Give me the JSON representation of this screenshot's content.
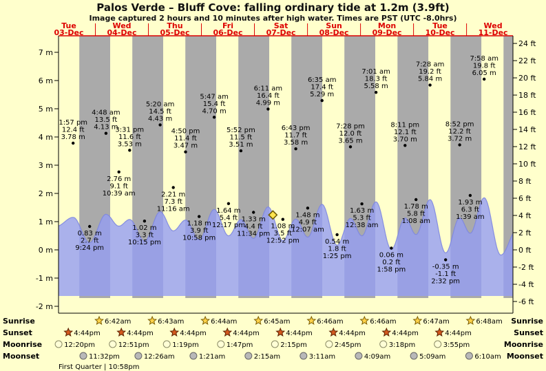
{
  "title": "Palos Verde – Bluff Cove: falling ordinary tide at 1.2m (3.9ft)",
  "subtitle": "Image captured 2 hours and 10 minutes after high water. Times are PST (UTC -8.0hrs)",
  "days": [
    {
      "name": "Tue",
      "date": "03-Dec"
    },
    {
      "name": "Wed",
      "date": "04-Dec"
    },
    {
      "name": "Thu",
      "date": "05-Dec"
    },
    {
      "name": "Fri",
      "date": "06-Dec"
    },
    {
      "name": "Sat",
      "date": "07-Dec"
    },
    {
      "name": "Sun",
      "date": "08-Dec"
    },
    {
      "name": "Mon",
      "date": "09-Dec"
    },
    {
      "name": "Tue",
      "date": "10-Dec"
    },
    {
      "name": "Wed",
      "date": "11-Dec"
    }
  ],
  "axes": {
    "left_unit": "m",
    "left_ticks": [
      7,
      6,
      5,
      4,
      3,
      2,
      1,
      0,
      -1,
      -2
    ],
    "right_unit": "ft",
    "right_ticks": [
      24,
      22,
      20,
      18,
      16,
      14,
      12,
      10,
      8,
      6,
      4,
      2,
      0,
      -2,
      -4,
      -6
    ]
  },
  "chart_data": {
    "type": "area",
    "x_range": {
      "start": "Tue 03-Dec (morning)",
      "end": "Wed 11-Dec (evening)"
    },
    "y_axis": {
      "left": {
        "unit": "m",
        "min": -2,
        "max": 7
      },
      "right": {
        "unit": "ft",
        "min": -6,
        "max": 24
      }
    },
    "events": [
      {
        "day_index": 0,
        "type": "high",
        "time": "1:57 pm",
        "ft": "12.4 ft",
        "m": "3.78 m"
      },
      {
        "day_index": 0,
        "type": "low",
        "time": "9:24 pm",
        "ft": "2.7 ft",
        "m": "0.83 m"
      },
      {
        "day_index": 1,
        "type": "high",
        "time": "4:48 am",
        "ft": "13.5 ft",
        "m": "4.13 m"
      },
      {
        "day_index": 1,
        "type": "low",
        "time": "10:39 am",
        "ft": "9.1 ft",
        "m": "2.76 m"
      },
      {
        "day_index": 1,
        "type": "high",
        "time": "3:31 pm",
        "ft": "11.6 ft",
        "m": "3.53 m"
      },
      {
        "day_index": 1,
        "type": "low",
        "time": "10:15 pm",
        "ft": "3.3 ft",
        "m": "1.02 m"
      },
      {
        "day_index": 2,
        "type": "high",
        "time": "5:20 am",
        "ft": "14.5 ft",
        "m": "4.43 m"
      },
      {
        "day_index": 2,
        "type": "low",
        "time": "11:16 am",
        "ft": "7.3 ft",
        "m": "2.21 m"
      },
      {
        "day_index": 2,
        "type": "high",
        "time": "4:50 pm",
        "ft": "11.4 ft",
        "m": "3.47 m"
      },
      {
        "day_index": 2,
        "type": "low",
        "time": "10:58 pm",
        "ft": "3.9 ft",
        "m": "1.18 m"
      },
      {
        "day_index": 3,
        "type": "high",
        "time": "5:47 am",
        "ft": "15.4 ft",
        "m": "4.70 m"
      },
      {
        "day_index": 3,
        "type": "low",
        "time": "12:17 pm",
        "ft": "5.4 ft",
        "m": "1.64 m"
      },
      {
        "day_index": 3,
        "type": "high",
        "time": "5:52 pm",
        "ft": "11.5 ft",
        "m": "3.51 m"
      },
      {
        "day_index": 3,
        "type": "low",
        "time": "11:34 pm",
        "ft": "4.4 ft",
        "m": "1.33 m"
      },
      {
        "day_index": 4,
        "type": "high",
        "time": "6:11 am",
        "ft": "16.4 ft",
        "m": "4.99 m"
      },
      {
        "day_index": 4,
        "type": "low",
        "time": "12:52 pm",
        "ft": "3.5 ft",
        "m": "1.08 m"
      },
      {
        "day_index": 4,
        "type": "high",
        "time": "6:43 pm",
        "ft": "11.7 ft",
        "m": "3.58 m"
      },
      {
        "day_index": 5,
        "type": "low",
        "time": "12:07 am",
        "ft": "4.9 ft",
        "m": "1.48 m"
      },
      {
        "day_index": 5,
        "type": "high",
        "time": "6:35 am",
        "ft": "17.4 ft",
        "m": "5.29 m"
      },
      {
        "day_index": 5,
        "type": "low",
        "time": "1:25 pm",
        "ft": "1.8 ft",
        "m": "0.54 m"
      },
      {
        "day_index": 5,
        "type": "high",
        "time": "7:28 pm",
        "ft": "12.0 ft",
        "m": "3.65 m"
      },
      {
        "day_index": 6,
        "type": "low",
        "time": "12:38 am",
        "ft": "5.3 ft",
        "m": "1.63 m"
      },
      {
        "day_index": 6,
        "type": "high",
        "time": "7:01 am",
        "ft": "18.3 ft",
        "m": "5.58 m"
      },
      {
        "day_index": 6,
        "type": "low",
        "time": "1:58 pm",
        "ft": "0.2 ft",
        "m": "0.06 m"
      },
      {
        "day_index": 6,
        "type": "high",
        "time": "8:11 pm",
        "ft": "12.1 ft",
        "m": "3.70 m"
      },
      {
        "day_index": 7,
        "type": "low",
        "time": "1:08 am",
        "ft": "5.8 ft",
        "m": "1.78 m"
      },
      {
        "day_index": 7,
        "type": "high",
        "time": "7:28 am",
        "ft": "19.2 ft",
        "m": "5.84 m"
      },
      {
        "day_index": 7,
        "type": "low",
        "time": "2:32 pm",
        "ft": "-1.1 ft",
        "m": "-0.35 m"
      },
      {
        "day_index": 7,
        "type": "high",
        "time": "8:52 pm",
        "ft": "12.2 ft",
        "m": "3.72 m"
      },
      {
        "day_index": 8,
        "type": "low",
        "time": "1:39 am",
        "ft": "6.3 ft",
        "m": "1.93 m"
      },
      {
        "day_index": 8,
        "type": "high",
        "time": "7:58 am",
        "ft": "19.8 ft",
        "m": "6.05 m"
      }
    ],
    "current_marker": {
      "day_index": 4,
      "time": "8:21 am",
      "height": "1.2m (3.9ft)",
      "state": "falling"
    }
  },
  "astro": {
    "rows": [
      {
        "label": "Sunrise",
        "icon": "sunrise-star-icon",
        "entries": [
          {
            "day_index": 1,
            "time": "6:42am"
          },
          {
            "day_index": 2,
            "time": "6:43am"
          },
          {
            "day_index": 3,
            "time": "6:44am"
          },
          {
            "day_index": 4,
            "time": "6:45am"
          },
          {
            "day_index": 5,
            "time": "6:46am"
          },
          {
            "day_index": 6,
            "time": "6:46am"
          },
          {
            "day_index": 7,
            "time": "6:47am"
          },
          {
            "day_index": 8,
            "time": "6:48am"
          }
        ]
      },
      {
        "label": "Sunset",
        "icon": "sunset-star-icon",
        "entries": [
          {
            "day_index": 0,
            "time": "4:44pm"
          },
          {
            "day_index": 1,
            "time": "4:44pm"
          },
          {
            "day_index": 2,
            "time": "4:44pm"
          },
          {
            "day_index": 3,
            "time": "4:44pm"
          },
          {
            "day_index": 4,
            "time": "4:44pm"
          },
          {
            "day_index": 5,
            "time": "4:44pm"
          },
          {
            "day_index": 6,
            "time": "4:44pm"
          },
          {
            "day_index": 7,
            "time": "4:44pm"
          }
        ]
      },
      {
        "label": "Moonrise",
        "icon": "moonrise-circle-icon",
        "entries": [
          {
            "day_index": 0,
            "time": "12:20pm"
          },
          {
            "day_index": 1,
            "time": "12:51pm"
          },
          {
            "day_index": 2,
            "time": "1:19pm"
          },
          {
            "day_index": 3,
            "time": "1:47pm"
          },
          {
            "day_index": 4,
            "time": "2:15pm"
          },
          {
            "day_index": 5,
            "time": "2:45pm"
          },
          {
            "day_index": 6,
            "time": "3:18pm"
          },
          {
            "day_index": 7,
            "time": "3:55pm"
          }
        ]
      },
      {
        "label": "Moonset",
        "icon": "moonset-circle-icon",
        "entries": [
          {
            "day_index": 0,
            "time": "11:32pm"
          },
          {
            "day_index": 2,
            "time": "12:26am"
          },
          {
            "day_index": 3,
            "time": "1:21am"
          },
          {
            "day_index": 4,
            "time": "2:15am"
          },
          {
            "day_index": 5,
            "time": "3:11am"
          },
          {
            "day_index": 6,
            "time": "4:09am"
          },
          {
            "day_index": 7,
            "time": "5:09am"
          },
          {
            "day_index": 8,
            "time": "6:10am"
          }
        ]
      }
    ]
  },
  "footer": {
    "moon_phase": "First Quarter | 10:58pm"
  },
  "colors": {
    "background": "#ffffcc",
    "red": "#dd0000",
    "night_band": "#aaaaaa",
    "tide_fill": "#959ef2",
    "tide_edge": "#7d86e0",
    "marker_fill": "#ffe44d",
    "sunrise_star": "#ffd24a",
    "sunset_star": "#d4591e",
    "moonrise_fill": "#ffffd6",
    "moonset_fill": "#b8b8b8"
  }
}
